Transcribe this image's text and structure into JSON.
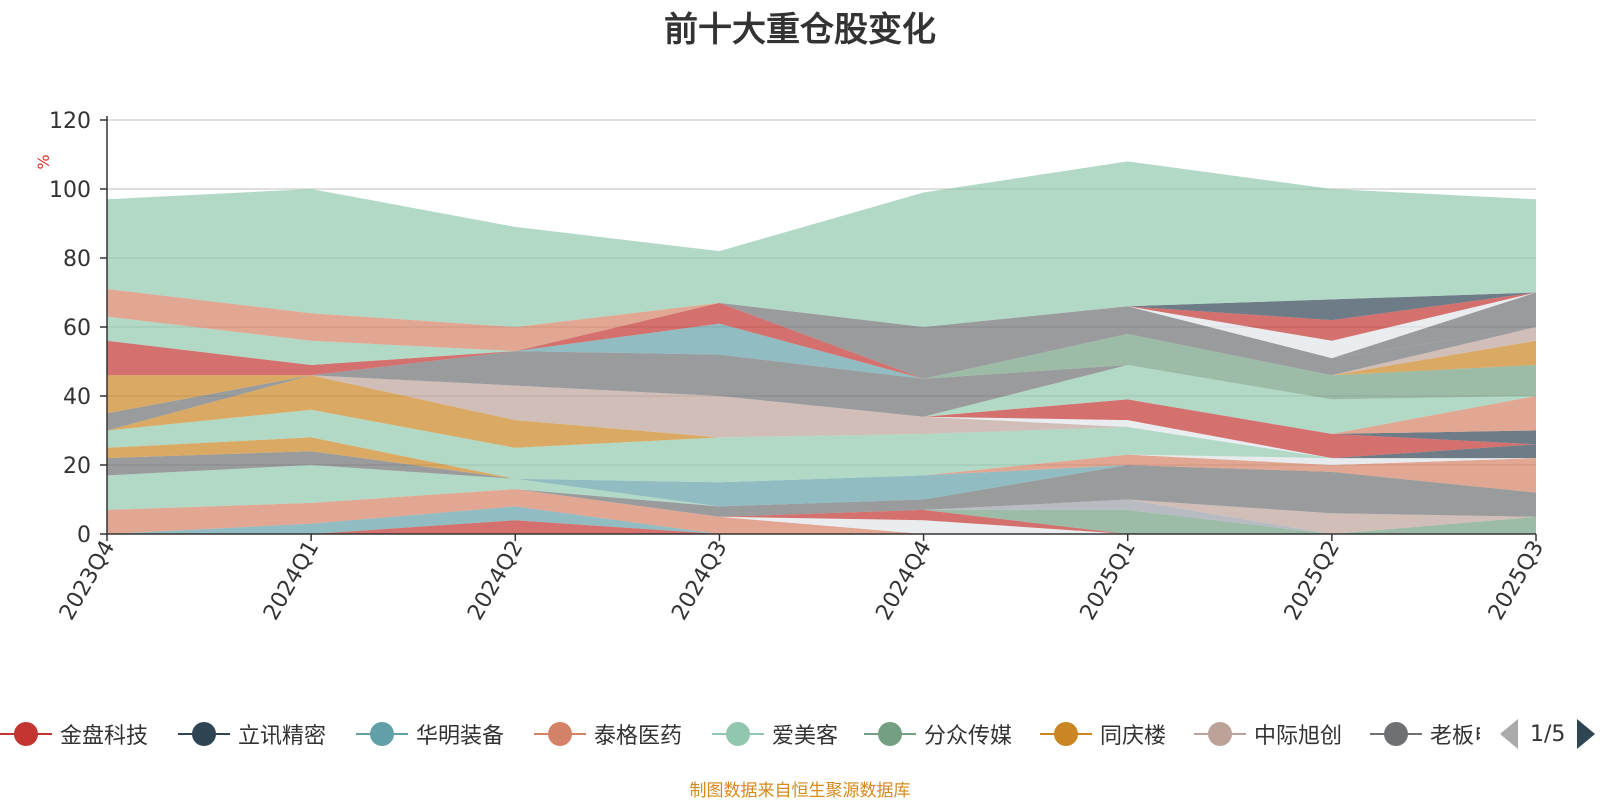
{
  "title": "前十大重仓股变化",
  "footer": "制图数据来自恒生聚源数据库",
  "pager": {
    "text": "1/5"
  },
  "colors": {
    "background": "#ffffff",
    "grid": "#cccccc",
    "axis": "#333333",
    "ylabel": "#e0302a",
    "footer": "#d48a1c"
  },
  "legend": [
    {
      "name": "金盘科技",
      "color": "#c23531"
    },
    {
      "name": "立讯精密",
      "color": "#2f4554"
    },
    {
      "name": "华明装备",
      "color": "#61a0a8"
    },
    {
      "name": "泰格医药",
      "color": "#d48265"
    },
    {
      "name": "爱美客",
      "color": "#91c7ae"
    },
    {
      "name": "分众传媒",
      "color": "#749f83"
    },
    {
      "name": "同庆楼",
      "color": "#ca8622"
    },
    {
      "name": "中际旭创",
      "color": "#bda29a"
    },
    {
      "name": "老板电器",
      "color": "#6e7074"
    }
  ],
  "chart_data": {
    "type": "area",
    "stacked": true,
    "title": "前十大重仓股变化",
    "ylabel": "%",
    "xlabel": "",
    "categories": [
      "2023Q4",
      "2024Q1",
      "2024Q2",
      "2024Q3",
      "2024Q4",
      "2025Q1",
      "2025Q2",
      "2025Q3"
    ],
    "ylim": [
      0,
      120
    ],
    "yticks": [
      0,
      20,
      40,
      60,
      80,
      100,
      120
    ],
    "grid": true,
    "legend_position": "bottom",
    "layers": [
      {
        "color": "#c23531",
        "values": [
          0,
          0,
          4,
          0,
          0,
          0,
          0,
          0
        ]
      },
      {
        "color": "#61a0a8",
        "values": [
          0,
          3,
          4,
          0,
          0,
          0,
          0,
          0
        ]
      },
      {
        "color": "#d48265",
        "values": [
          7,
          6,
          5,
          5,
          0,
          0,
          0,
          0
        ]
      },
      {
        "color": "#dde3e6",
        "values": [
          0,
          0,
          0,
          0,
          0,
          0,
          0,
          0
        ]
      },
      {
        "color": "#e0e6e9",
        "values": [
          0,
          0,
          0,
          0,
          4,
          0,
          0,
          0
        ]
      },
      {
        "color": "#c23531",
        "values": [
          0,
          0,
          0,
          0,
          3,
          0,
          0,
          0
        ]
      },
      {
        "color": "#749f83",
        "values": [
          0,
          0,
          0,
          0,
          0,
          7,
          0,
          5
        ]
      },
      {
        "color": "#9a9ea8",
        "values": [
          0,
          0,
          0,
          0,
          0,
          3,
          0,
          0
        ]
      },
      {
        "color": "#bda29a",
        "values": [
          0,
          0,
          0,
          0,
          0,
          0,
          6,
          0
        ]
      },
      {
        "color": "#6e7074",
        "values": [
          0,
          0,
          0,
          3,
          3,
          10,
          12,
          7
        ]
      },
      {
        "color": "#91c7ae",
        "values": [
          10,
          11,
          3,
          0,
          0,
          0,
          0,
          0
        ]
      },
      {
        "color": "#61a0a8",
        "values": [
          0,
          0,
          0,
          7,
          7,
          0,
          0,
          0
        ]
      },
      {
        "color": "#d48265",
        "values": [
          0,
          0,
          0,
          0,
          0,
          3,
          2,
          10
        ]
      },
      {
        "color": "#6e7074",
        "values": [
          5,
          4,
          0,
          0,
          0,
          0,
          0,
          0
        ]
      },
      {
        "color": "#ca8622",
        "values": [
          3,
          4,
          0,
          0,
          0,
          0,
          0,
          0
        ]
      },
      {
        "color": "#dde3e6",
        "values": [
          0,
          0,
          0,
          0,
          0,
          0,
          2,
          0
        ]
      },
      {
        "color": "#2f4554",
        "values": [
          0,
          0,
          0,
          0,
          0,
          0,
          0,
          4
        ]
      },
      {
        "color": "#91c7ae",
        "values": [
          5,
          8,
          9,
          13,
          12,
          8,
          0,
          0
        ]
      },
      {
        "color": "#ca8622",
        "values": [
          0,
          10,
          8,
          0,
          0,
          0,
          0,
          0
        ]
      },
      {
        "color": "#bda29a",
        "values": [
          0,
          0,
          10,
          12,
          5,
          0,
          0,
          0
        ]
      },
      {
        "color": "#6e7074",
        "values": [
          5,
          0,
          0,
          0,
          0,
          0,
          0,
          0
        ]
      },
      {
        "color": "#e0e6e9",
        "values": [
          0,
          0,
          0,
          0,
          0,
          2,
          0,
          0
        ]
      },
      {
        "color": "#c23531",
        "values": [
          0,
          0,
          0,
          0,
          0,
          6,
          7,
          0
        ]
      },
      {
        "color": "#2f4554",
        "values": [
          0,
          0,
          0,
          0,
          0,
          0,
          0,
          4
        ]
      },
      {
        "color": "#d48265",
        "values": [
          0,
          0,
          0,
          0,
          0,
          0,
          0,
          10
        ]
      },
      {
        "color": "#91c7ae",
        "values": [
          0,
          0,
          0,
          0,
          0,
          10,
          10,
          0
        ]
      },
      {
        "color": "#ca8622",
        "values": [
          11,
          0,
          0,
          0,
          0,
          0,
          0,
          0
        ]
      },
      {
        "color": "#6e7074",
        "values": [
          0,
          0,
          10,
          12,
          11,
          0,
          0,
          0
        ]
      },
      {
        "color": "#c23531",
        "values": [
          10,
          3,
          0,
          0,
          0,
          0,
          0,
          0
        ]
      },
      {
        "color": "#749f83",
        "values": [
          0,
          0,
          0,
          0,
          0,
          9,
          7,
          9
        ]
      },
      {
        "color": "#ca8622",
        "values": [
          0,
          0,
          0,
          0,
          0,
          0,
          0,
          7
        ]
      },
      {
        "color": "#91c7ae",
        "values": [
          7,
          7,
          0,
          0,
          0,
          0,
          0,
          0
        ]
      },
      {
        "color": "#61a0a8",
        "values": [
          0,
          0,
          0,
          9,
          0,
          0,
          0,
          0
        ]
      },
      {
        "color": "#c23531",
        "values": [
          0,
          0,
          0,
          6,
          0,
          0,
          0,
          0
        ]
      },
      {
        "color": "#bda29a",
        "values": [
          0,
          0,
          0,
          0,
          0,
          0,
          0,
          4
        ]
      },
      {
        "color": "#6e7074",
        "values": [
          0,
          0,
          0,
          0,
          15,
          8,
          5,
          0
        ]
      },
      {
        "color": "#6e7074",
        "values": [
          0,
          0,
          0,
          0,
          0,
          0,
          0,
          10
        ]
      },
      {
        "color": "#e0e6e9",
        "values": [
          0,
          0,
          0,
          0,
          0,
          0,
          5,
          0
        ]
      },
      {
        "color": "#c23531",
        "values": [
          0,
          0,
          0,
          0,
          0,
          0,
          6,
          0
        ]
      },
      {
        "color": "#2f4554",
        "values": [
          0,
          0,
          0,
          0,
          0,
          0,
          6,
          0
        ]
      },
      {
        "color": "#d48265",
        "values": [
          8,
          8,
          7,
          0,
          0,
          0,
          0,
          0
        ]
      },
      {
        "color": "#91c7ae",
        "values": [
          26,
          36,
          29,
          15,
          39,
          42,
          32,
          27
        ]
      }
    ]
  }
}
